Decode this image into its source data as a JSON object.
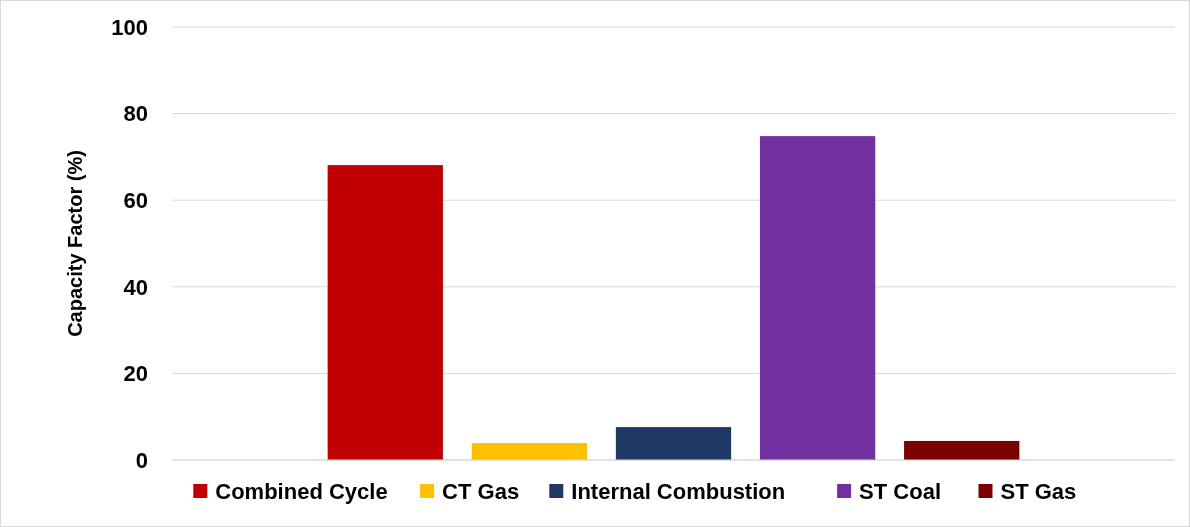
{
  "chart_data": {
    "type": "bar",
    "ylabel": "Capacity Factor (%)",
    "categories": [
      null
    ],
    "series": [
      {
        "name": "Combined Cycle",
        "color": "#c00000",
        "values": [
          68.1
        ]
      },
      {
        "name": "CT Gas",
        "color": "#ffc000",
        "values": [
          3.9
        ]
      },
      {
        "name": "Internal Combustion",
        "color": "#1f3864",
        "values": [
          7.6
        ]
      },
      {
        "name": "ST Coal",
        "color": "#7030a0",
        "values": [
          74.8
        ]
      },
      {
        "name": "ST Gas",
        "color": "#7b0000",
        "values": [
          4.4
        ]
      }
    ],
    "ylim": [
      0,
      100
    ],
    "yticks": [
      0,
      20,
      40,
      60,
      80,
      100
    ],
    "grid": "y",
    "legend": "bottom"
  }
}
